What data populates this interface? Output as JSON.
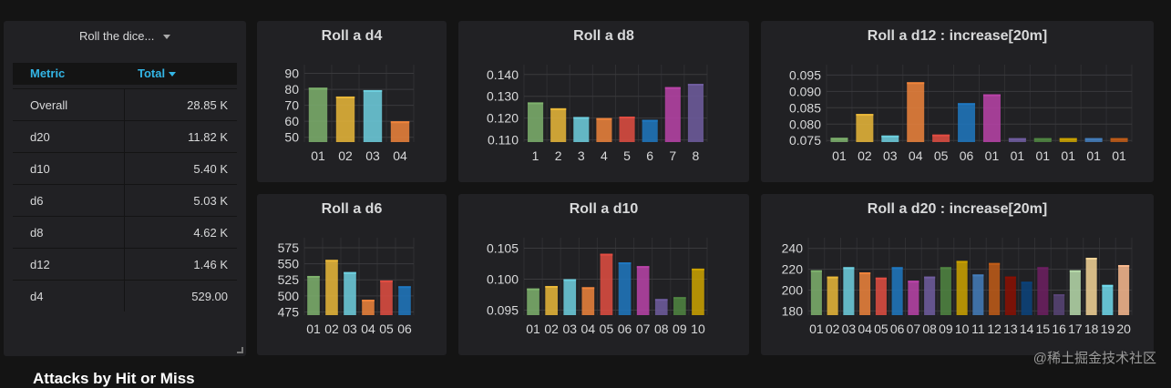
{
  "dropdown": {
    "label": "Roll the dice...",
    "icon": "caret-down-icon"
  },
  "table": {
    "col_metric": "Metric",
    "col_total": "Total",
    "sort_icon": "caret-down-icon",
    "rows": [
      {
        "metric": "Overall",
        "total": "28.85 K"
      },
      {
        "metric": "d20",
        "total": "11.82 K"
      },
      {
        "metric": "d10",
        "total": "5.40 K"
      },
      {
        "metric": "d6",
        "total": "5.03 K"
      },
      {
        "metric": "d8",
        "total": "4.62 K"
      },
      {
        "metric": "d12",
        "total": "1.46 K"
      },
      {
        "metric": "d4",
        "total": "529.00"
      }
    ]
  },
  "section_title": "Attacks by Hit or Miss",
  "watermark": "@稀土掘金技术社区",
  "colors": {
    "c1": "#7eb26d",
    "c2": "#eab839",
    "c3": "#6ed0e0",
    "c4": "#ef843c",
    "c5": "#e24d42",
    "c6": "#1f78c1",
    "c7": "#ba43a9",
    "c8": "#705da0",
    "c9": "#508642",
    "c10": "#cca300",
    "c11": "#447ebc",
    "c12": "#c15c17",
    "c13": "#890f02",
    "c14": "#0a437c",
    "c15": "#6d1f62",
    "c16": "#584477",
    "c17": "#b7dbab",
    "c18": "#f4d598",
    "c19": "#70dbed",
    "c20": "#f9ba8f"
  },
  "chart_data": [
    {
      "type": "bar",
      "title": "Roll a d4",
      "categories": [
        "01",
        "02",
        "03",
        "04"
      ],
      "values": [
        81,
        75.5,
        79.5,
        60
      ],
      "ylim": [
        47,
        92
      ],
      "yticks": [
        "90",
        "80",
        "70",
        "60",
        "50"
      ],
      "ytick_vals": [
        90,
        80,
        70,
        60,
        50
      ],
      "colors": [
        "#7eb26d",
        "#eab839",
        "#6ed0e0",
        "#ef843c"
      ]
    },
    {
      "type": "bar",
      "title": "Roll a d8",
      "categories": [
        "1",
        "2",
        "3",
        "4",
        "5",
        "6",
        "7",
        "8"
      ],
      "values": [
        0.1272,
        0.1245,
        0.1205,
        0.12,
        0.1207,
        0.1192,
        0.1342,
        0.1357
      ],
      "ylim": [
        0.109,
        0.142
      ],
      "yticks": [
        "0.140",
        "0.130",
        "0.120",
        "0.110"
      ],
      "ytick_vals": [
        0.14,
        0.13,
        0.12,
        0.11
      ],
      "colors": [
        "#7eb26d",
        "#eab839",
        "#6ed0e0",
        "#ef843c",
        "#e24d42",
        "#1f78c1",
        "#ba43a9",
        "#705da0"
      ]
    },
    {
      "type": "bar",
      "title": "Roll a d12 : increase[20m]",
      "categories": [
        "01",
        "02",
        "03",
        "04",
        "05",
        "06",
        "01",
        "01",
        "01",
        "01",
        "01",
        "01"
      ],
      "values": [
        0.0758,
        0.0831,
        0.0765,
        0.0928,
        0.0768,
        0.0864,
        0.0891,
        0.0757,
        0.0757,
        0.0757,
        0.0757,
        0.0757
      ],
      "ylim": [
        0.0745,
        0.0965
      ],
      "yticks": [
        "0.095",
        "0.090",
        "0.085",
        "0.080",
        "0.075"
      ],
      "ytick_vals": [
        0.095,
        0.09,
        0.085,
        0.08,
        0.075
      ],
      "colors": [
        "#7eb26d",
        "#eab839",
        "#6ed0e0",
        "#ef843c",
        "#e24d42",
        "#1f78c1",
        "#ba43a9",
        "#705da0",
        "#508642",
        "#cca300",
        "#447ebc",
        "#c15c17"
      ]
    },
    {
      "type": "bar",
      "title": "Roll a d6",
      "categories": [
        "01",
        "02",
        "03",
        "04",
        "05",
        "06"
      ],
      "values": [
        531,
        556,
        537,
        494,
        524,
        515
      ],
      "ylim": [
        470,
        582
      ],
      "yticks": [
        "575",
        "550",
        "525",
        "500",
        "475"
      ],
      "ytick_vals": [
        575,
        550,
        525,
        500,
        475
      ],
      "colors": [
        "#7eb26d",
        "#eab839",
        "#6ed0e0",
        "#ef843c",
        "#e24d42",
        "#1f78c1"
      ]
    },
    {
      "type": "bar",
      "title": "Roll a d10",
      "categories": [
        "01",
        "02",
        "03",
        "04",
        "05",
        "06",
        "07",
        "08",
        "09",
        "10"
      ],
      "values": [
        0.0985,
        0.0989,
        0.1,
        0.0987,
        0.1041,
        0.1027,
        0.1021,
        0.0968,
        0.0971,
        0.1017
      ],
      "ylim": [
        0.0942,
        0.1058
      ],
      "yticks": [
        "0.105",
        "0.100",
        "0.095"
      ],
      "ytick_vals": [
        0.105,
        0.1,
        0.095
      ],
      "colors": [
        "#7eb26d",
        "#eab839",
        "#6ed0e0",
        "#ef843c",
        "#e24d42",
        "#1f78c1",
        "#ba43a9",
        "#705da0",
        "#508642",
        "#cca300"
      ]
    },
    {
      "type": "bar",
      "title": "Roll a d20 : increase[20m]",
      "categories": [
        "01",
        "02",
        "03",
        "04",
        "05",
        "06",
        "07",
        "08",
        "09",
        "10",
        "11",
        "12",
        "13",
        "14",
        "15",
        "16",
        "17",
        "18",
        "19",
        "20"
      ],
      "values": [
        219,
        213,
        222,
        217,
        212,
        222,
        209,
        213,
        222,
        228,
        215,
        226,
        213,
        208,
        222,
        196,
        219,
        231,
        205,
        224
      ],
      "ylim": [
        176,
        245
      ],
      "yticks": [
        "240",
        "220",
        "200",
        "180"
      ],
      "ytick_vals": [
        240,
        220,
        200,
        180
      ],
      "colors": [
        "#7eb26d",
        "#eab839",
        "#6ed0e0",
        "#ef843c",
        "#e24d42",
        "#1f78c1",
        "#ba43a9",
        "#705da0",
        "#508642",
        "#cca300",
        "#447ebc",
        "#c15c17",
        "#890f02",
        "#0a437c",
        "#6d1f62",
        "#584477",
        "#b7dbab",
        "#f4d598",
        "#70dbed",
        "#f9ba8f"
      ]
    }
  ]
}
